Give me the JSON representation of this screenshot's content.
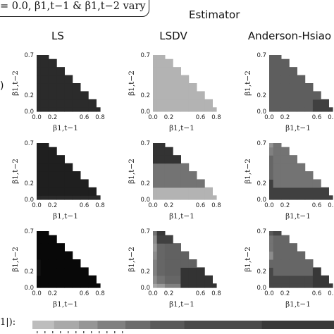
{
  "caption": "= 0.0, β1,t−1 & β1,t−2 vary",
  "estimator_title": "Estimator",
  "legend_label": "1|):",
  "chart_data": {
    "type": "heatmap",
    "columns": [
      "LS",
      "LSDV",
      "Anderson-Hsiao"
    ],
    "xlabel": "β1,t−1",
    "ylabel": "β1,t−2",
    "x_ticks": [
      "0.0",
      "0.2",
      "0.6",
      "0.8"
    ],
    "y_ticks": [
      "0.7",
      "0.2",
      "0.0"
    ],
    "xlim": [
      0.0,
      0.8
    ],
    "ylim": [
      0.0,
      0.7
    ],
    "x_centers": [
      0.0,
      0.1,
      0.2,
      0.3,
      0.4,
      0.5,
      0.6,
      0.7,
      0.8
    ],
    "y_centers": [
      0.0,
      0.1,
      0.2,
      0.3,
      0.4,
      0.5,
      0.6,
      0.7
    ],
    "domain_rule": "cell shown when x + y <= 0.9",
    "colorbar": [
      "#bdbdbd",
      "#a9a9a9",
      "#969696",
      "#808080",
      "#6c6c6c",
      "#5a5a5a",
      "#4a4a4a",
      "#3a3a3a"
    ],
    "panels": [
      {
        "row": 1,
        "column": "LS",
        "gray": [
          [
            0.83,
            0.83,
            0.83,
            0.83,
            0.83,
            0.83,
            0.83,
            0.83,
            0.83
          ],
          [
            0.83,
            0.83,
            0.83,
            0.83,
            0.83,
            0.83,
            0.83,
            0.83
          ],
          [
            0.83,
            0.83,
            0.83,
            0.83,
            0.83,
            0.83,
            0.83
          ],
          [
            0.83,
            0.83,
            0.83,
            0.83,
            0.83,
            0.83
          ],
          [
            0.83,
            0.83,
            0.83,
            0.83,
            0.83
          ],
          [
            0.83,
            0.83,
            0.83,
            0.83
          ],
          [
            0.83,
            0.83,
            0.83
          ],
          [
            0.83,
            0.83
          ]
        ]
      },
      {
        "row": 1,
        "column": "LSDV",
        "gray": [
          [
            0.3,
            0.3,
            0.3,
            0.3,
            0.3,
            0.3,
            0.3,
            0.3,
            0.3
          ],
          [
            0.3,
            0.3,
            0.3,
            0.3,
            0.3,
            0.3,
            0.3,
            0.3
          ],
          [
            0.3,
            0.3,
            0.3,
            0.3,
            0.3,
            0.3,
            0.3
          ],
          [
            0.3,
            0.3,
            0.3,
            0.3,
            0.3,
            0.3
          ],
          [
            0.3,
            0.3,
            0.3,
            0.3,
            0.3
          ],
          [
            0.3,
            0.3,
            0.3,
            0.3
          ],
          [
            0.3,
            0.3,
            0.3
          ],
          [
            0.3,
            0.3
          ]
        ]
      },
      {
        "row": 1,
        "column": "Anderson-Hsiao",
        "gray": [
          [
            0.63,
            0.63,
            0.63,
            0.63,
            0.63,
            0.63,
            0.75,
            0.75,
            0.75
          ],
          [
            0.63,
            0.63,
            0.63,
            0.63,
            0.63,
            0.63,
            0.75,
            0.75
          ],
          [
            0.63,
            0.63,
            0.63,
            0.63,
            0.63,
            0.63,
            0.63
          ],
          [
            0.63,
            0.63,
            0.63,
            0.63,
            0.63,
            0.63
          ],
          [
            0.63,
            0.63,
            0.63,
            0.63,
            0.63
          ],
          [
            0.63,
            0.63,
            0.63,
            0.63
          ],
          [
            0.63,
            0.63,
            0.63
          ],
          [
            0.63,
            0.63
          ]
        ]
      },
      {
        "row": 2,
        "column": "LS",
        "gray": [
          [
            0.84,
            0.84,
            0.84,
            0.84,
            0.84,
            0.84,
            0.84,
            0.84,
            0.84
          ],
          [
            0.88,
            0.88,
            0.88,
            0.88,
            0.88,
            0.88,
            0.88,
            0.88
          ],
          [
            0.88,
            0.88,
            0.88,
            0.88,
            0.88,
            0.88,
            0.88
          ],
          [
            0.88,
            0.88,
            0.88,
            0.88,
            0.88,
            0.88
          ],
          [
            0.88,
            0.88,
            0.88,
            0.88,
            0.88
          ],
          [
            0.88,
            0.88,
            0.88,
            0.88
          ],
          [
            0.88,
            0.88,
            0.88
          ],
          [
            0.88,
            0.88
          ]
        ]
      },
      {
        "row": 2,
        "column": "LSDV",
        "gray": [
          [
            0.3,
            0.3,
            0.3,
            0.3,
            0.3,
            0.3,
            0.3,
            0.3,
            0.3
          ],
          [
            0.3,
            0.3,
            0.3,
            0.3,
            0.3,
            0.3,
            0.3,
            0.3
          ],
          [
            0.55,
            0.55,
            0.55,
            0.55,
            0.55,
            0.55,
            0.55
          ],
          [
            0.55,
            0.55,
            0.55,
            0.55,
            0.55,
            0.55
          ],
          [
            0.55,
            0.55,
            0.55,
            0.55,
            0.55
          ],
          [
            0.8,
            0.8,
            0.8,
            0.8
          ],
          [
            0.8,
            0.8,
            0.8
          ],
          [
            0.8,
            0.8
          ]
        ]
      },
      {
        "row": 2,
        "column": "Anderson-Hsiao",
        "gray": [
          [
            0.75,
            0.75,
            0.75,
            0.75,
            0.75,
            0.75,
            0.75,
            0.75,
            0.75
          ],
          [
            0.75,
            0.75,
            0.75,
            0.75,
            0.75,
            0.75,
            0.75,
            0.75
          ],
          [
            0.75,
            0.55,
            0.55,
            0.55,
            0.55,
            0.55,
            0.55
          ],
          [
            0.6,
            0.55,
            0.55,
            0.55,
            0.55,
            0.55
          ],
          [
            0.6,
            0.55,
            0.55,
            0.55,
            0.55
          ],
          [
            0.6,
            0.55,
            0.55,
            0.55
          ],
          [
            0.5,
            0.55,
            0.55
          ],
          [
            0.42,
            0.55
          ]
        ]
      },
      {
        "row": 3,
        "column": "LS",
        "gray": [
          [
            0.97,
            0.97,
            0.97,
            0.97,
            0.97,
            0.97,
            0.97,
            0.97,
            0.97
          ],
          [
            0.97,
            0.97,
            0.97,
            0.97,
            0.97,
            0.97,
            0.97,
            0.97
          ],
          [
            0.92,
            0.97,
            0.97,
            0.97,
            0.97,
            0.97,
            0.97
          ],
          [
            0.92,
            0.97,
            0.97,
            0.97,
            0.97,
            0.97
          ],
          [
            0.97,
            0.97,
            0.97,
            0.97,
            0.97
          ],
          [
            0.97,
            0.97,
            0.97,
            0.97
          ],
          [
            0.97,
            0.97,
            0.97
          ],
          [
            0.97,
            0.97
          ]
        ]
      },
      {
        "row": 3,
        "column": "LSDV",
        "gray": [
          [
            0.35,
            0.4,
            0.5,
            0.5,
            0.8,
            0.8,
            0.8,
            0.8,
            0.8
          ],
          [
            0.45,
            0.55,
            0.6,
            0.6,
            0.8,
            0.8,
            0.8,
            0.8
          ],
          [
            0.5,
            0.6,
            0.62,
            0.62,
            0.8,
            0.8,
            0.8
          ],
          [
            0.5,
            0.6,
            0.62,
            0.62,
            0.62,
            0.62
          ],
          [
            0.45,
            0.6,
            0.62,
            0.62,
            0.62
          ],
          [
            0.4,
            0.6,
            0.62,
            0.62
          ],
          [
            0.45,
            0.75,
            0.75
          ],
          [
            0.55,
            0.78
          ]
        ]
      },
      {
        "row": 3,
        "column": "Anderson-Hsiao",
        "gray": [
          [
            0.72,
            0.72,
            0.72,
            0.72,
            0.72,
            0.72,
            0.78,
            0.78,
            0.78
          ],
          [
            0.72,
            0.72,
            0.72,
            0.72,
            0.72,
            0.72,
            0.78,
            0.78
          ],
          [
            0.72,
            0.6,
            0.6,
            0.6,
            0.6,
            0.6,
            0.78
          ],
          [
            0.6,
            0.6,
            0.6,
            0.6,
            0.6,
            0.6
          ],
          [
            0.45,
            0.6,
            0.6,
            0.6,
            0.6
          ],
          [
            0.55,
            0.6,
            0.6,
            0.6
          ],
          [
            0.55,
            0.6,
            0.6
          ],
          [
            0.65,
            0.72
          ]
        ]
      }
    ]
  }
}
